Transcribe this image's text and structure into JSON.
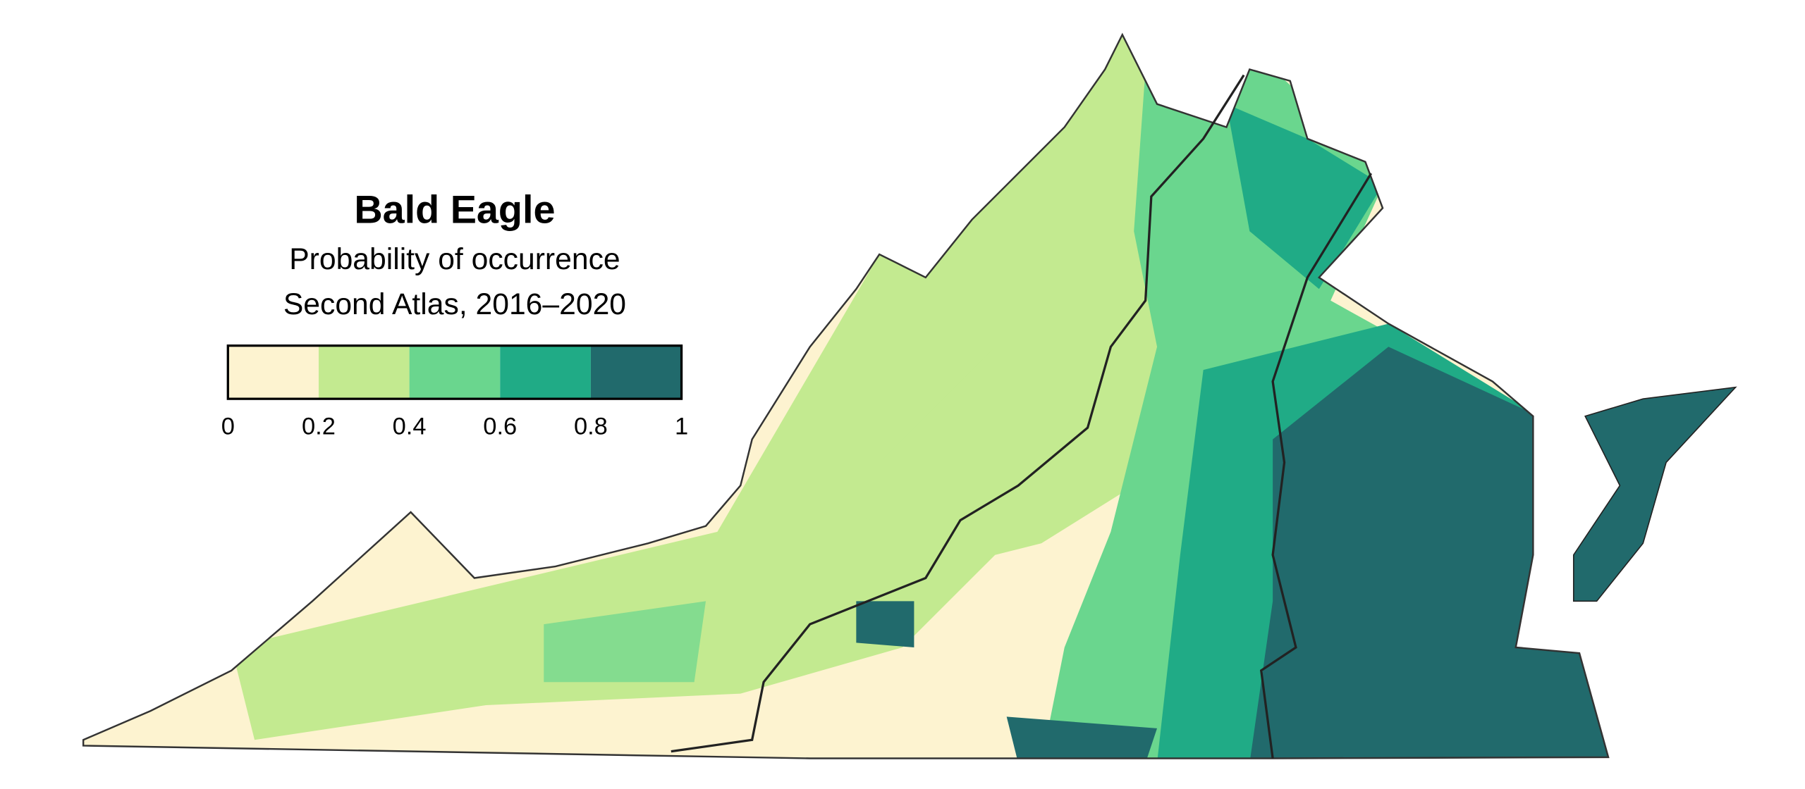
{
  "title": "Bald Eagle",
  "subtitle": "Probability of occurrence",
  "period": "Second Atlas, 2016–2020",
  "legend": {
    "ticks": [
      0,
      0.2,
      0.4,
      0.6,
      0.8,
      1
    ],
    "colors": [
      "#fdf3d0",
      "#c3ea90",
      "#6ad68e",
      "#20ab86",
      "#216a6c"
    ]
  }
}
